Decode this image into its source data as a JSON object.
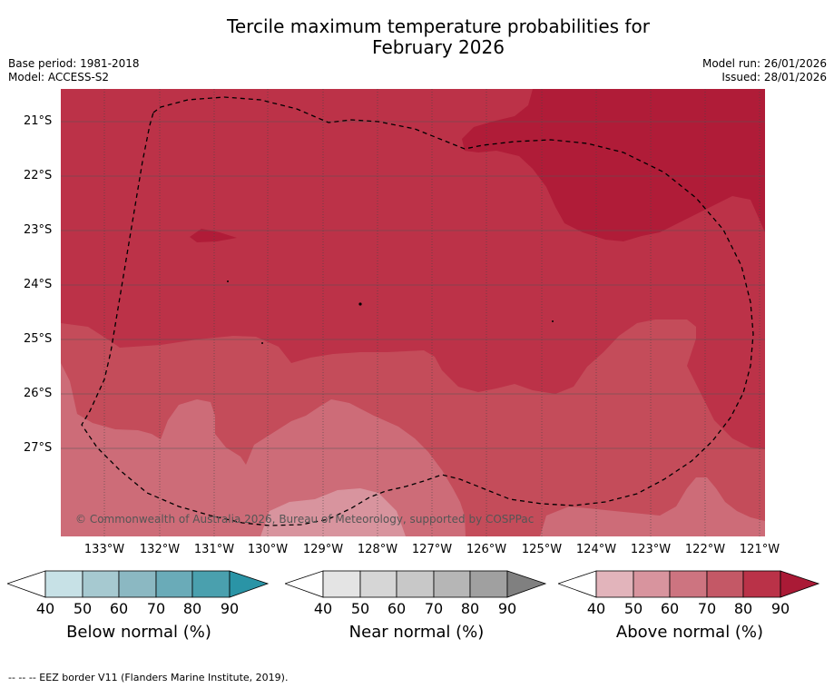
{
  "title": {
    "line1": "Tercile maximum temperature probabilities for",
    "line2": "February 2026"
  },
  "meta": {
    "base_period": "Base period: 1981-2018",
    "model": "Model: ACCESS-S2",
    "model_run": "Model run: 26/01/2026",
    "issued": "Issued: 28/01/2026"
  },
  "map": {
    "lat_labels": [
      "21°S",
      "22°S",
      "23°S",
      "24°S",
      "25°S",
      "26°S",
      "27°S"
    ],
    "lon_labels": [
      "133°W",
      "132°W",
      "131°W",
      "130°W",
      "129°W",
      "128°W",
      "127°W",
      "126°W",
      "125°W",
      "124°W",
      "123°W",
      "122°W",
      "121°W"
    ],
    "copyright": "© Commonwealth of Australia 2026, Bureau of Meteorology, supported by COSPPac",
    "colors": {
      "p50": "#d8949e",
      "p60": "#cd6c78",
      "p70": "#c44c5a",
      "p80": "#bc3248",
      "p90": "#b01c38"
    }
  },
  "colorbars": [
    {
      "label": "Below normal (%)",
      "ticks": [
        "40",
        "50",
        "60",
        "70",
        "80",
        "90"
      ],
      "colors": [
        "#c7e1e6",
        "#a6c9d0",
        "#8bb8c2",
        "#6aabb8",
        "#4aa0ae",
        "#2a94a6"
      ]
    },
    {
      "label": "Near normal (%)",
      "ticks": [
        "40",
        "50",
        "60",
        "70",
        "80",
        "90"
      ],
      "colors": [
        "#e4e4e4",
        "#d6d6d6",
        "#c8c8c8",
        "#b6b6b6",
        "#a0a0a0",
        "#808080"
      ]
    },
    {
      "label": "Above normal (%)",
      "ticks": [
        "40",
        "50",
        "60",
        "70",
        "80",
        "90"
      ],
      "colors": [
        "#e2b4bb",
        "#d8949e",
        "#cd7480",
        "#c45866",
        "#ba3248",
        "#aa1a36"
      ]
    }
  ],
  "footnote": "--  --  -- EEZ border V11 (Flanders Marine Institute, 2019)."
}
